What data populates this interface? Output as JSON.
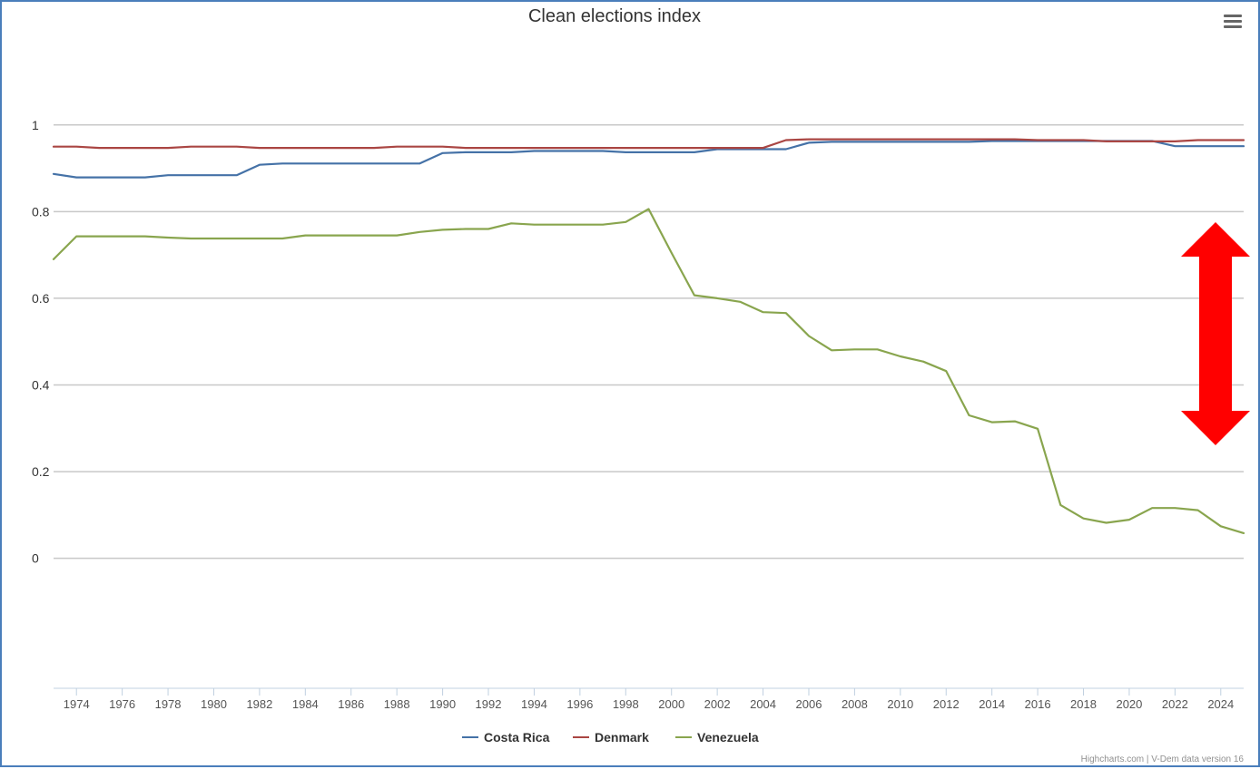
{
  "chart_data": {
    "type": "line",
    "title": "Clean elections index",
    "ylabel": "",
    "xlabel": "",
    "ylim": [
      -0.3,
      1.1
    ],
    "xlim": [
      1973,
      2025
    ],
    "yticks": [
      0,
      0.2,
      0.4,
      0.6,
      0.8,
      1
    ],
    "ytick_labels": [
      "0",
      "0.2",
      "0.4",
      "0.6",
      "0.8",
      "1"
    ],
    "xticks": [
      1974,
      1976,
      1978,
      1980,
      1982,
      1984,
      1986,
      1988,
      1990,
      1992,
      1994,
      1996,
      1998,
      2000,
      2002,
      2004,
      2006,
      2008,
      2010,
      2012,
      2014,
      2016,
      2018,
      2020,
      2022,
      2024
    ],
    "x": [
      1973,
      1974,
      1975,
      1976,
      1977,
      1978,
      1979,
      1980,
      1981,
      1982,
      1983,
      1984,
      1985,
      1986,
      1987,
      1988,
      1989,
      1990,
      1991,
      1992,
      1993,
      1994,
      1995,
      1996,
      1997,
      1998,
      1999,
      2000,
      2001,
      2002,
      2003,
      2004,
      2005,
      2006,
      2007,
      2008,
      2009,
      2010,
      2011,
      2012,
      2013,
      2014,
      2015,
      2016,
      2017,
      2018,
      2019,
      2020,
      2021,
      2022,
      2023,
      2024,
      2025
    ],
    "grid": true,
    "legend_position": "bottom-center",
    "series": [
      {
        "name": "Costa Rica",
        "color": "#4572a7",
        "values": [
          0.887,
          0.879,
          0.879,
          0.879,
          0.879,
          0.884,
          0.884,
          0.884,
          0.884,
          0.908,
          0.911,
          0.911,
          0.911,
          0.911,
          0.911,
          0.911,
          0.911,
          0.935,
          0.937,
          0.937,
          0.937,
          0.94,
          0.94,
          0.94,
          0.94,
          0.937,
          0.937,
          0.937,
          0.937,
          0.944,
          0.944,
          0.944,
          0.944,
          0.959,
          0.961,
          0.961,
          0.961,
          0.961,
          0.961,
          0.961,
          0.961,
          0.963,
          0.963,
          0.963,
          0.963,
          0.963,
          0.963,
          0.963,
          0.963,
          0.951,
          0.951,
          0.951,
          0.951
        ]
      },
      {
        "name": "Denmark",
        "color": "#aa4643",
        "values": [
          0.95,
          0.95,
          0.947,
          0.947,
          0.947,
          0.947,
          0.95,
          0.95,
          0.95,
          0.947,
          0.947,
          0.947,
          0.947,
          0.947,
          0.947,
          0.95,
          0.95,
          0.95,
          0.947,
          0.947,
          0.947,
          0.947,
          0.947,
          0.947,
          0.947,
          0.947,
          0.947,
          0.947,
          0.947,
          0.947,
          0.947,
          0.947,
          0.965,
          0.967,
          0.967,
          0.967,
          0.967,
          0.967,
          0.967,
          0.967,
          0.967,
          0.967,
          0.967,
          0.965,
          0.965,
          0.965,
          0.962,
          0.962,
          0.962,
          0.962,
          0.965,
          0.965,
          0.965
        ]
      },
      {
        "name": "Venezuela",
        "color": "#89a54e",
        "values": [
          0.69,
          0.743,
          0.743,
          0.743,
          0.743,
          0.74,
          0.738,
          0.738,
          0.738,
          0.738,
          0.738,
          0.745,
          0.745,
          0.745,
          0.745,
          0.745,
          0.753,
          0.758,
          0.76,
          0.76,
          0.773,
          0.77,
          0.77,
          0.77,
          0.77,
          0.776,
          0.806,
          0.705,
          0.607,
          0.6,
          0.592,
          0.568,
          0.566,
          0.513,
          0.48,
          0.482,
          0.482,
          0.466,
          0.454,
          0.432,
          0.33,
          0.314,
          0.316,
          0.299,
          0.123,
          0.092,
          0.082,
          0.089,
          0.116,
          0.116,
          0.111,
          0.074,
          0.058
        ]
      }
    ]
  },
  "annotation": {
    "type": "double-arrow",
    "color": "#ff0000"
  },
  "credits": "Highcharts.com | V-Dem data version 16",
  "menu_icon": "hamburger-menu-icon"
}
